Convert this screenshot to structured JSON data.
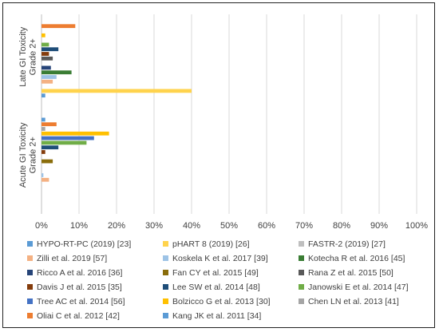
{
  "chart_data": {
    "type": "bar",
    "orientation": "horizontal",
    "categories": [
      "Late GI Toxicity Grade 2+",
      "Acute GI Toxicity Grade 2+"
    ],
    "category_lines": [
      [
        "Late GI Toxicity",
        "Grade 2+"
      ],
      [
        "Acute GI Toxicity",
        "Grade 2+"
      ]
    ],
    "x_ticks": [
      "0%",
      "10%",
      "20%",
      "30%",
      "40%",
      "50%",
      "60%",
      "70%",
      "80%",
      "90%",
      "100%"
    ],
    "xlim": [
      0,
      100
    ],
    "grid": "vertical",
    "legend": "bottom",
    "series": [
      {
        "name": "HYPO-RT-PC (2019) [23]",
        "color": "#5b9bd5",
        "values": [
          1,
          0
        ]
      },
      {
        "name": "pHART 8 (2019) [26]",
        "color": "#ffd34d",
        "values": [
          40,
          0
        ]
      },
      {
        "name": "FASTR-2 (2019) [27]",
        "color": "#bfbfbf",
        "values": [
          0,
          0
        ]
      },
      {
        "name": "Zilli et al. 2019 [57]",
        "color": "#f4b183",
        "values": [
          3,
          2
        ]
      },
      {
        "name": "Koskela K et al. 2017 [39]",
        "color": "#9dc3e6",
        "values": [
          4,
          0.5
        ]
      },
      {
        "name": "Kotecha R et al. 2016 [45]",
        "color": "#3a7d34",
        "values": [
          8,
          0
        ]
      },
      {
        "name": "Ricco A et al. 2016 [36]",
        "color": "#264478",
        "values": [
          2.5,
          0
        ]
      },
      {
        "name": "Fan CY et al. 2015 [49]",
        "color": "#8a6d0b",
        "values": [
          0,
          3
        ]
      },
      {
        "name": "Rana Z et al. 2015 [50]",
        "color": "#595959",
        "values": [
          3,
          0
        ]
      },
      {
        "name": "Davis J et al. 2015 [35]",
        "color": "#843c0c",
        "values": [
          2,
          1
        ]
      },
      {
        "name": "Lee SW et al. 2014 [48]",
        "color": "#1f4e79",
        "values": [
          4.5,
          4.5
        ]
      },
      {
        "name": "Janowski E et al. 2014 [47]",
        "color": "#70ad47",
        "values": [
          2,
          12
        ]
      },
      {
        "name": "Tree AC et al. 2014 [56]",
        "color": "#4472c4",
        "values": [
          0,
          14
        ]
      },
      {
        "name": "Bolzicco G et al. 2013 [30]",
        "color": "#ffc000",
        "values": [
          1,
          18
        ]
      },
      {
        "name": "Chen LN et al. 2013 [41]",
        "color": "#a5a5a5",
        "values": [
          0,
          1
        ]
      },
      {
        "name": "Oliai C et al. 2012 [42]",
        "color": "#ed7d31",
        "values": [
          9,
          4
        ]
      },
      {
        "name": "Kang JK et al. 2011 [34]",
        "color": "#5b9bd5",
        "values": [
          0,
          1
        ]
      }
    ]
  }
}
